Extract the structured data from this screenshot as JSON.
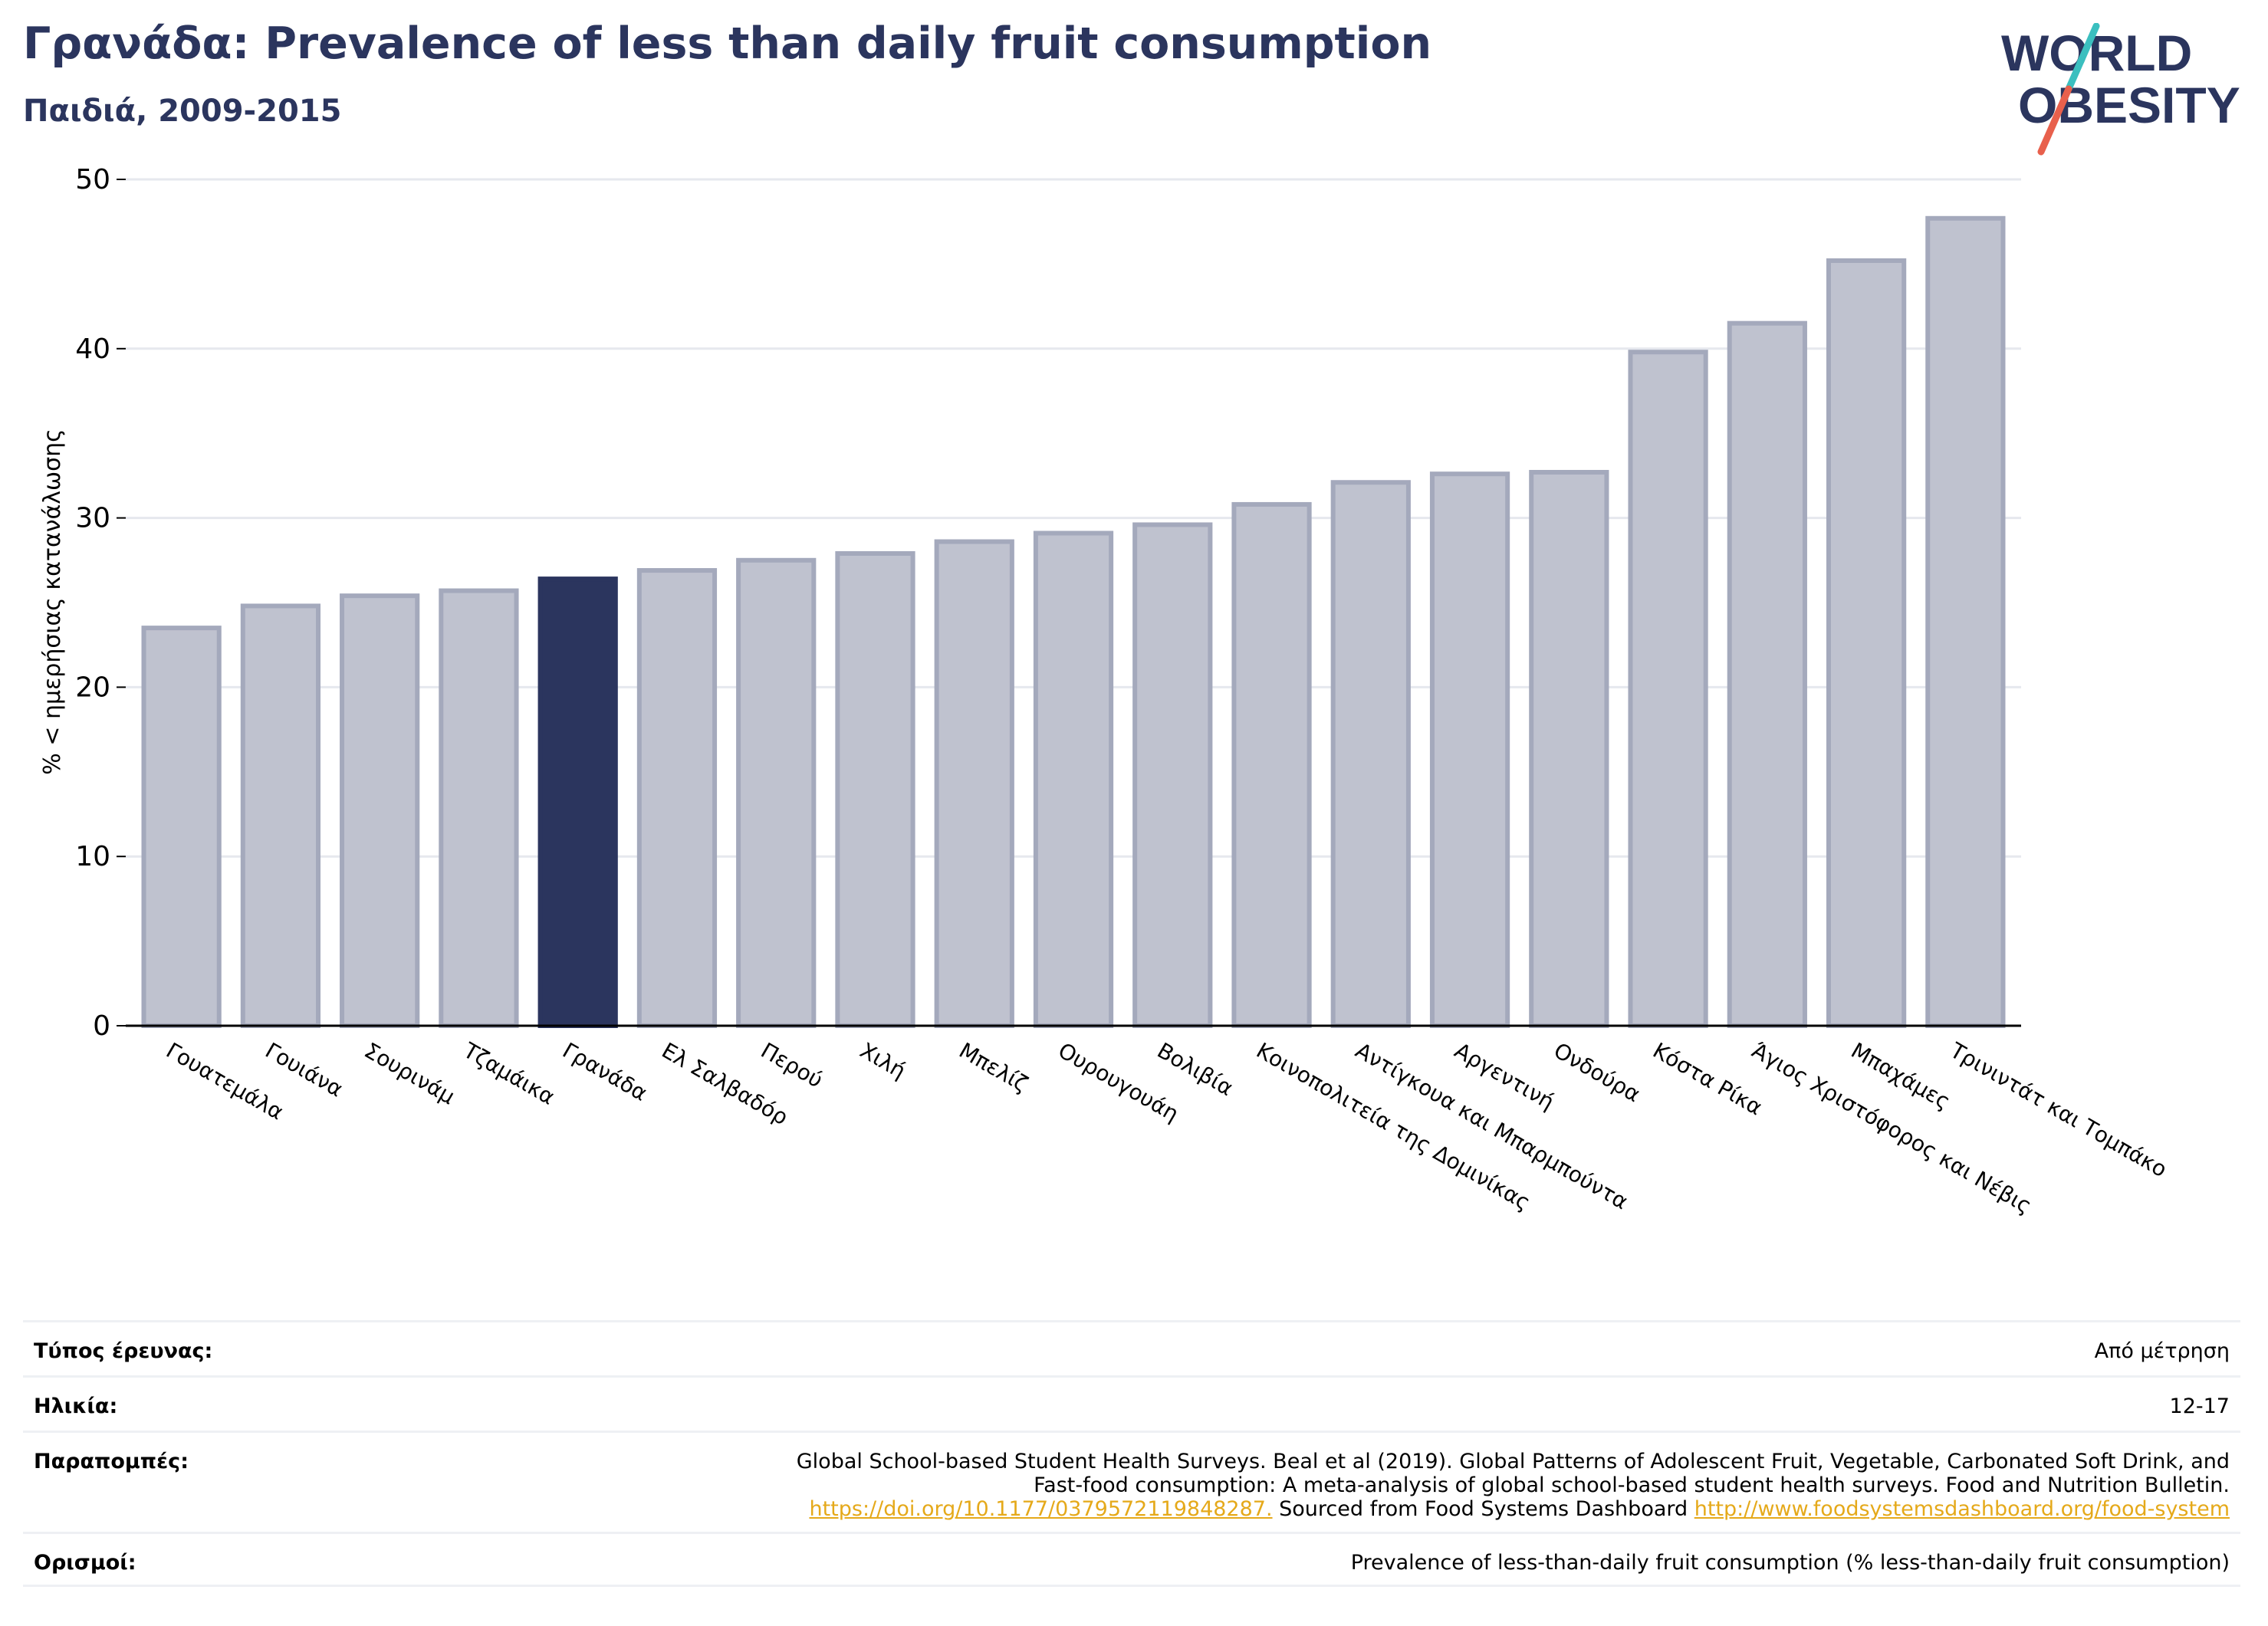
{
  "header": {
    "title": "Γρανάδα: Prevalence of less than daily fruit consumption",
    "subtitle": "Παιδιά, 2009-2015"
  },
  "logo": {
    "line1": "WORLD",
    "line2": "OBESITY",
    "colors": {
      "text": "#2b355e",
      "slash_top": "#3bbfbf",
      "slash_bottom": "#e8604c"
    }
  },
  "chart_data": {
    "type": "bar",
    "title": "Γρανάδα: Prevalence of less than daily fruit consumption",
    "subtitle": "Παιδιά, 2009-2015",
    "ylabel": "% < ημερήσιας κατανάλωσης",
    "xlabel": "",
    "ylim": [
      0,
      50
    ],
    "yticks": [
      0,
      10,
      20,
      30,
      40,
      50
    ],
    "grid": true,
    "highlight": "Γρανάδα",
    "colors": {
      "bar": "#bfc2cf",
      "bar_edge": "#a4a9bc",
      "highlight": "#2b355e",
      "grid": "#e6e8ee"
    },
    "categories": [
      "Γουατεμάλα",
      "Γουιάνα",
      "Σουρινάμ",
      "Τζαμάικα",
      "Γρανάδα",
      "Ελ Σαλβαδόρ",
      "Περού",
      "Χιλή",
      "Μπελίζ",
      "Ουρουγουάη",
      "Βολιβία",
      "Κοινοπολιτεία της Δομινίκας",
      "Αντίγκουα και Μπαρμπούντα",
      "Αργεντινή",
      "Ονδούρα",
      "Κόστα Ρίκα",
      "Άγιος Χριστόφορος και Νέβις",
      "Μπαχάμες",
      "Τρινιντάτ και Τομπάκο"
    ],
    "values": [
      23.5,
      24.8,
      25.4,
      25.7,
      26.4,
      26.9,
      27.5,
      27.9,
      28.6,
      29.1,
      29.6,
      30.8,
      32.1,
      32.6,
      32.7,
      39.8,
      41.5,
      45.2,
      47.7
    ]
  },
  "meta": {
    "survey_type": {
      "label": "Τύπος έρευνας:",
      "value": "Από μέτρηση"
    },
    "age": {
      "label": "Ηλικία:",
      "value": "12-17"
    },
    "references": {
      "label": "Παραπομπές:",
      "line1": "Global School-based Student Health Surveys. Beal et al (2019). Global Patterns of Adolescent Fruit, Vegetable, Carbonated Soft Drink, and",
      "line2": "Fast-food consumption: A meta-analysis of global school-based student health surveys. Food and Nutrition Bulletin.",
      "link1": "https://doi.org/10.1177/0379572119848287.",
      "middle": " Sourced from Food Systems Dashboard ",
      "link2": "http://www.foodsystemsdashboard.org/food-system"
    },
    "definitions": {
      "label": "Ορισμοί:",
      "value": "Prevalence of less-than-daily fruit consumption (% less-than-daily fruit consumption)"
    }
  }
}
